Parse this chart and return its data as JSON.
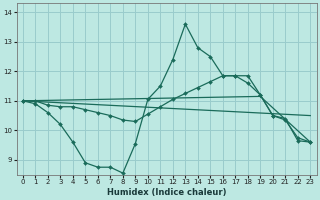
{
  "xlabel": "Humidex (Indice chaleur)",
  "background_color": "#bde8e2",
  "grid_color": "#99cccc",
  "line_color": "#1a6b5a",
  "xlim": [
    -0.5,
    23.5
  ],
  "ylim": [
    8.5,
    14.3
  ],
  "yticks": [
    9,
    10,
    11,
    12,
    13,
    14
  ],
  "xticks": [
    0,
    1,
    2,
    3,
    4,
    5,
    6,
    7,
    8,
    9,
    10,
    11,
    12,
    13,
    14,
    15,
    16,
    17,
    18,
    19,
    20,
    21,
    22,
    23
  ],
  "series": {
    "wave_x": [
      0,
      1,
      2,
      3,
      4,
      5,
      6,
      7,
      8,
      9,
      10,
      11,
      12,
      13,
      14,
      15,
      16,
      17,
      18,
      19,
      20,
      21,
      22,
      23
    ],
    "wave_y": [
      11.0,
      10.9,
      10.6,
      10.2,
      9.6,
      8.9,
      8.75,
      8.75,
      8.55,
      9.55,
      11.05,
      11.5,
      12.4,
      13.6,
      12.8,
      12.5,
      11.85,
      11.85,
      11.6,
      11.2,
      10.5,
      10.4,
      9.65,
      9.6
    ],
    "flat_x": [
      0,
      1,
      2,
      3,
      4,
      5,
      6,
      7,
      8,
      9,
      10,
      11,
      12,
      13,
      14,
      15,
      16,
      17,
      18,
      19,
      20,
      21,
      22,
      23
    ],
    "flat_y": [
      11.0,
      11.0,
      10.85,
      10.8,
      10.8,
      10.7,
      10.6,
      10.5,
      10.35,
      10.3,
      10.55,
      10.8,
      11.05,
      11.25,
      11.45,
      11.65,
      11.85,
      11.85,
      11.85,
      11.2,
      10.5,
      10.35,
      9.75,
      9.6
    ],
    "trend1_x": [
      0,
      23
    ],
    "trend1_y": [
      11.0,
      10.5
    ],
    "trend2_x": [
      0,
      19,
      23
    ],
    "trend2_y": [
      11.0,
      11.15,
      9.6
    ]
  }
}
